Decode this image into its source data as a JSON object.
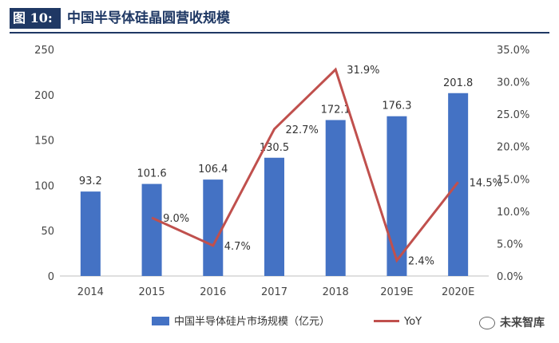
{
  "header": {
    "figure_label": "图 10:",
    "title": "中国半导体硅晶圆营收规模"
  },
  "chart_data": {
    "type": "bar+line",
    "title": "中国半导体硅晶圆营收规模",
    "categories": [
      "2014",
      "2015",
      "2016",
      "2017",
      "2018",
      "2019E",
      "2020E"
    ],
    "series": [
      {
        "name": "中国半导体硅片市场规模（亿元）",
        "type": "bar",
        "axis": "left",
        "values": [
          93.2,
          101.6,
          106.4,
          130.5,
          172.1,
          176.3,
          201.8
        ],
        "labels": [
          "93.2",
          "101.6",
          "106.4",
          "130.5",
          "172.1",
          "176.3",
          "201.8"
        ],
        "color": "#4472c4"
      },
      {
        "name": "YoY",
        "type": "line",
        "axis": "right",
        "x": [
          "2015",
          "2016",
          "2017",
          "2018",
          "2019E",
          "2020E"
        ],
        "values": [
          9.0,
          4.7,
          22.7,
          31.9,
          2.4,
          14.5
        ],
        "labels": [
          "9.0%",
          "4.7%",
          "22.7%",
          "31.9%",
          "2.4%",
          "14.5%"
        ],
        "color": "#c0504d"
      }
    ],
    "left_axis": {
      "ylim": [
        0,
        250
      ],
      "ticks": [
        "0",
        "50",
        "100",
        "150",
        "200",
        "250"
      ]
    },
    "right_axis": {
      "ylim": [
        0,
        35
      ],
      "ticks": [
        "0.0%",
        "5.0%",
        "10.0%",
        "15.0%",
        "20.0%",
        "25.0%",
        "30.0%",
        "35.0%"
      ]
    },
    "grid": false,
    "legend_position": "bottom"
  },
  "watermark": {
    "text": "未来智库",
    "icon": "wechat-icon"
  }
}
